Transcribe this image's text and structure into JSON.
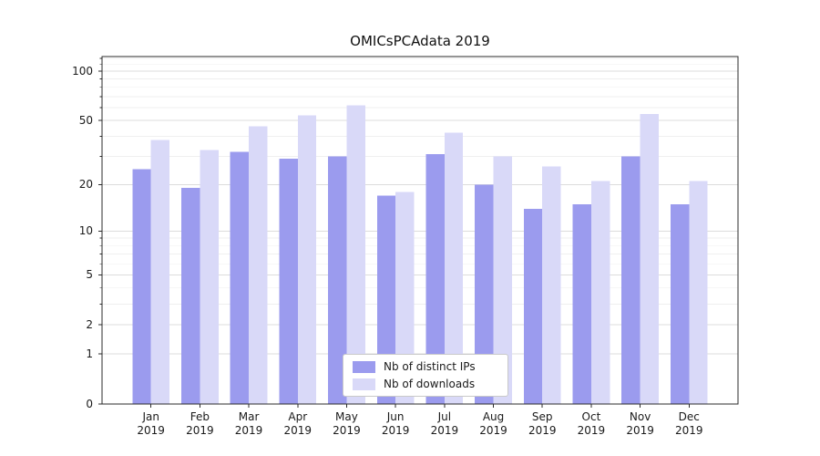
{
  "chart_data": {
    "type": "bar",
    "title": "OMICsPCAdata 2019",
    "categories": [
      "Jan 2019",
      "Feb 2019",
      "Mar 2019",
      "Apr 2019",
      "May 2019",
      "Jun 2019",
      "Jul 2019",
      "Aug 2019",
      "Sep 2019",
      "Oct 2019",
      "Nov 2019",
      "Dec 2019"
    ],
    "x_tick_months": [
      "Jan",
      "Feb",
      "Mar",
      "Apr",
      "May",
      "Jun",
      "Jul",
      "Aug",
      "Sep",
      "Oct",
      "Nov",
      "Dec"
    ],
    "x_tick_year": "2019",
    "series": [
      {
        "name": "Nb of distinct IPs",
        "color": "#9b9bee",
        "values": [
          25,
          19,
          32,
          29,
          30,
          17,
          31,
          20,
          14,
          15,
          30,
          15
        ]
      },
      {
        "name": "Nb of downloads",
        "color": "#d9d9f8",
        "values": [
          38,
          33,
          46,
          54,
          62,
          18,
          42,
          30,
          26,
          21,
          55,
          21
        ]
      }
    ],
    "xlabel": "",
    "ylabel": "",
    "yscale": "symlog (log10(1+v))",
    "yticks": [
      0,
      1,
      2,
      5,
      10,
      20,
      50,
      100
    ],
    "minor_yticks": [
      3,
      4,
      6,
      7,
      8,
      9,
      30,
      40,
      60,
      70,
      80,
      90,
      110,
      120
    ],
    "ylim": [
      0,
      123
    ],
    "grid": true,
    "legend_location": "lower center, inside plot"
  },
  "style": {
    "axis_color": "#2b2b2b",
    "major_grid_color": "#dcdcdc",
    "minor_grid_color": "#efefef",
    "background": "#ffffff"
  }
}
